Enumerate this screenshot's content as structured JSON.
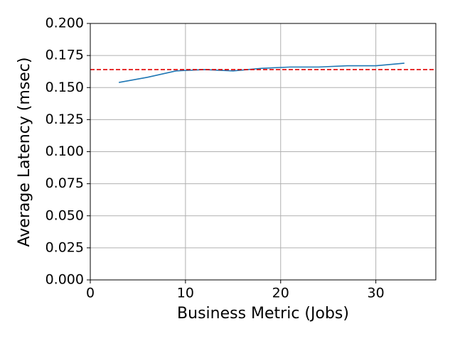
{
  "chart_data": {
    "type": "line",
    "xlabel": "Business Metric (Jobs)",
    "ylabel": "Average Latency (msec)",
    "x": [
      3,
      6,
      9,
      12,
      15,
      18,
      21,
      24,
      27,
      30,
      33
    ],
    "series": [
      {
        "color": "#1f77b4",
        "values": [
          0.154,
          0.158,
          0.163,
          0.164,
          0.163,
          0.165,
          0.166,
          0.166,
          0.167,
          0.167,
          0.169
        ]
      }
    ],
    "reference_line": {
      "value": 0.164,
      "color": "#e00000",
      "dashed": true
    },
    "xlim": [
      0,
      36.3
    ],
    "ylim": [
      0,
      0.2
    ],
    "xticks": [
      0,
      10,
      20,
      30
    ],
    "yticks": [
      {
        "value": 0,
        "label": "0.000"
      },
      0.025,
      {
        "value": 0.05,
        "label": "0.050"
      },
      0.075,
      {
        "value": 0.1,
        "label": "0.100"
      },
      0.125,
      {
        "value": 0.15,
        "label": "0.150"
      },
      0.175,
      {
        "value": 0.2,
        "label": "0.200"
      }
    ],
    "grid": true
  }
}
